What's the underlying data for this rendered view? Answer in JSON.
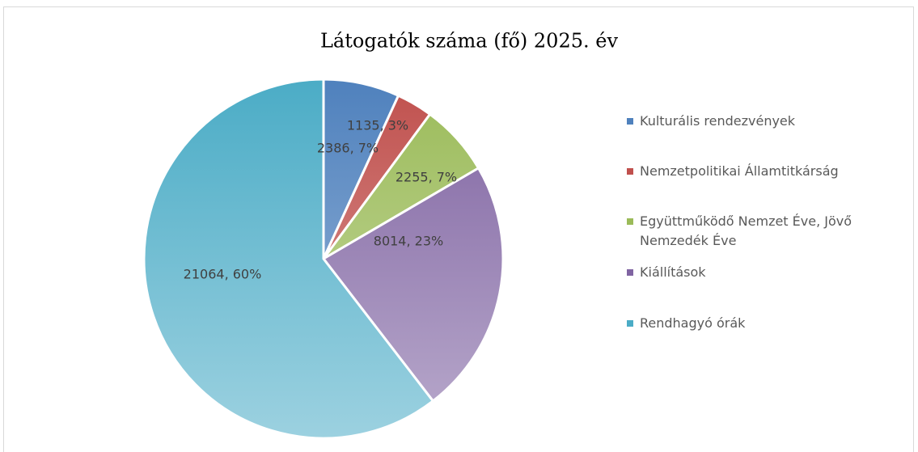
{
  "chart_data": {
    "type": "pie",
    "title": "Látogatók száma (fő) 2025. év",
    "categories": [
      "Kulturális rendezvények",
      "Nemzetpolitikai Államtitkárság",
      "Együttműködő Nemzet Éve, Jövő Nemzedék Éve",
      "Kiállítások",
      "Rendhagyó órák"
    ],
    "values": [
      2386,
      1135,
      2255,
      8014,
      21064
    ],
    "value_labels": [
      "2386, 7%",
      "1135, 3%",
      "2255, 7%",
      "8014, 23%",
      "21064, 60%"
    ],
    "colors": [
      "#4f81bd",
      "#c0504d",
      "#9bbb59",
      "#8064a2",
      "#4bacc6"
    ],
    "legend": "right"
  }
}
